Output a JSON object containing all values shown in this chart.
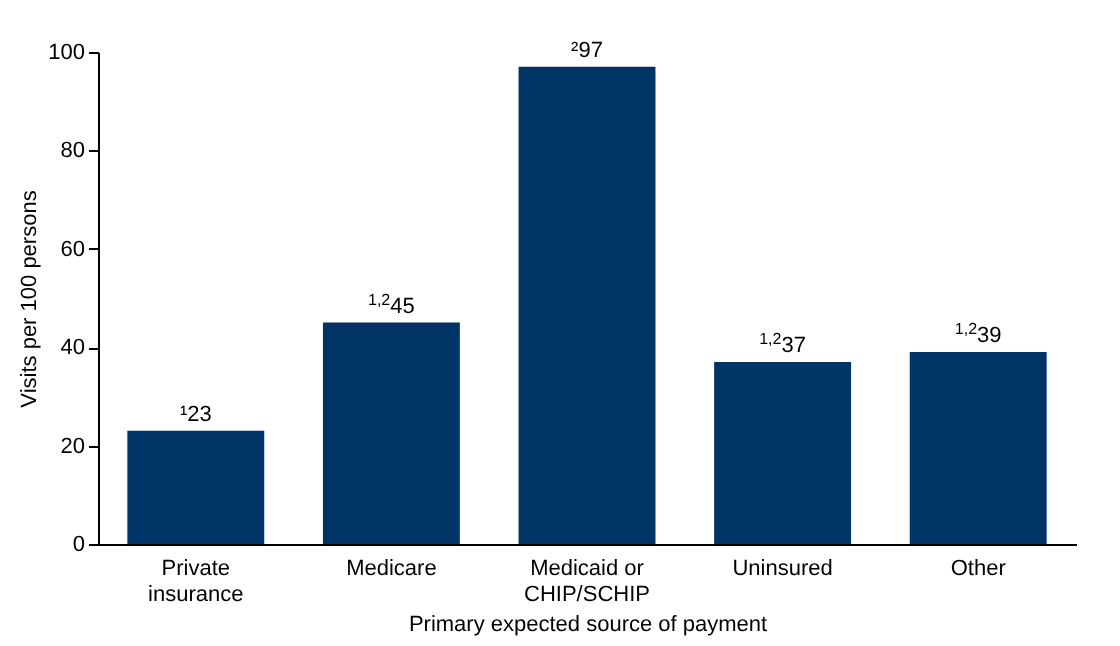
{
  "chart_data": {
    "type": "bar",
    "xlabel": "Primary expected source of payment",
    "ylabel": "Visits per 100 persons",
    "categories": [
      "Private insurance",
      "Medicare",
      "Medicaid or CHIP/SCHIP",
      "Uninsured",
      "Other"
    ],
    "values": [
      23,
      45,
      97,
      37,
      39
    ],
    "value_labels": [
      "¹23",
      "$^{1,2}$45",
      "²97",
      "$^{1,2}$37",
      "$^{1,2}$39"
    ],
    "color": "#003366",
    "ylim": [
      0,
      100
    ],
    "yticks": [
      0,
      20,
      40,
      60,
      80,
      100
    ],
    "grid": false
  }
}
